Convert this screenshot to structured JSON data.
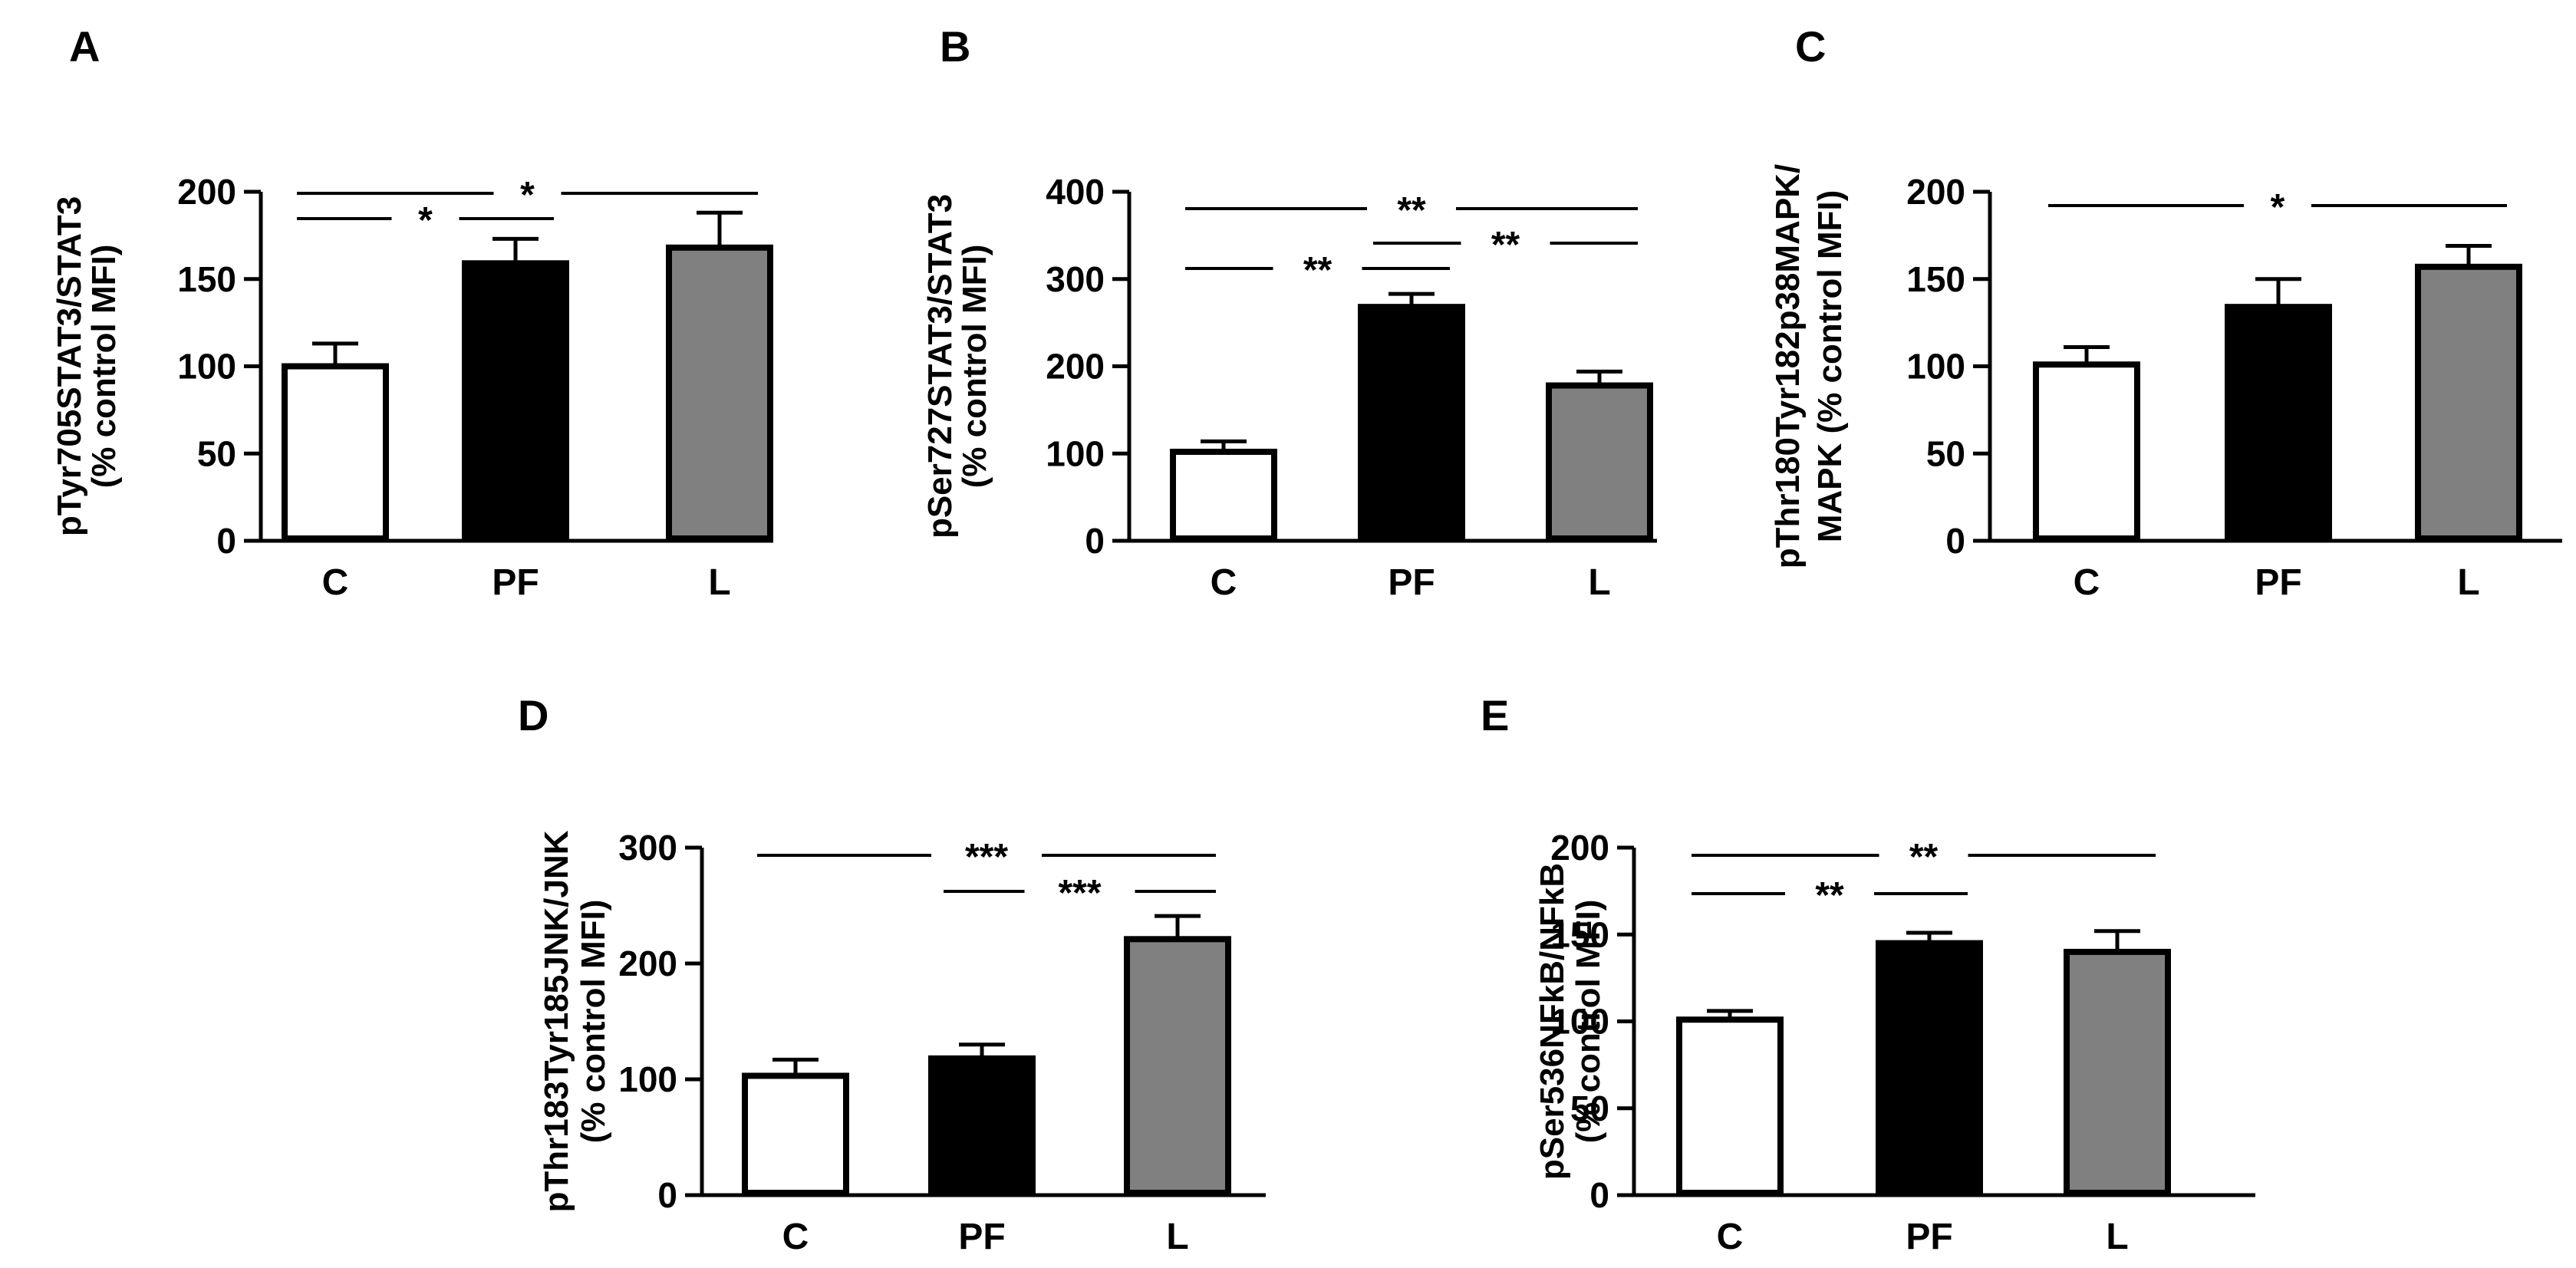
{
  "figure": {
    "panels": [
      {
        "id": "A",
        "panel_label": "A",
        "ylabel_lines": [
          "pTyr705STAT3/STAT3",
          "(% control MFI)"
        ],
        "y_ticks": [
          0,
          50,
          100,
          150,
          200
        ],
        "significance": [
          {
            "from": "C",
            "to": "PF",
            "label": "*"
          },
          {
            "from": "C",
            "to": "L",
            "label": "*"
          }
        ]
      },
      {
        "id": "B",
        "panel_label": "B",
        "ylabel_lines": [
          "pSer727STAT3/STAT3",
          "(% control MFI)"
        ],
        "y_ticks": [
          0,
          100,
          200,
          300,
          400
        ],
        "significance": [
          {
            "from": "C",
            "to": "PF",
            "label": "**"
          },
          {
            "from": "PF",
            "to": "L",
            "label": "**"
          },
          {
            "from": "C",
            "to": "L",
            "label": "**"
          }
        ]
      },
      {
        "id": "C",
        "panel_label": "C",
        "ylabel_lines": [
          "pThr180Tyr182p38MAPK/",
          "MAPK (% control MFI)"
        ],
        "y_ticks": [
          0,
          50,
          100,
          150,
          200
        ],
        "significance": [
          {
            "from": "C",
            "to": "L",
            "label": "*"
          }
        ]
      },
      {
        "id": "D",
        "panel_label": "D",
        "ylabel_lines": [
          "pThr183Tyr185JNK/JNK",
          "(% control MFI)"
        ],
        "y_ticks": [
          0,
          100,
          200,
          300
        ],
        "significance": [
          {
            "from": "C",
            "to": "L",
            "label": "***"
          },
          {
            "from": "PF",
            "to": "L",
            "label": "***"
          }
        ]
      },
      {
        "id": "E",
        "panel_label": "E",
        "ylabel_lines": [
          "pSer536NFkB/NFkB",
          "(% control MFI)"
        ],
        "y_ticks": [
          0,
          50,
          100,
          150,
          200
        ],
        "significance": [
          {
            "from": "C",
            "to": "PF",
            "label": "**"
          },
          {
            "from": "C",
            "to": "L",
            "label": "**"
          }
        ]
      }
    ],
    "colors": {
      "C": "#ffffff",
      "PF": "#000000",
      "L": "#808080",
      "axis": "#000000"
    }
  },
  "chart_data": [
    {
      "type": "bar",
      "title": "A",
      "categories": [
        "C",
        "PF",
        "L"
      ],
      "values": [
        100,
        159,
        168
      ],
      "errors": [
        13,
        14,
        20
      ],
      "xlabel": "",
      "ylabel": "pTyr705STAT3/STAT3 (% control MFI)",
      "ylim": [
        0,
        200
      ],
      "grid": false
    },
    {
      "type": "bar",
      "title": "B",
      "categories": [
        "C",
        "PF",
        "L"
      ],
      "values": [
        102,
        268,
        178
      ],
      "errors": [
        12,
        15,
        16
      ],
      "xlabel": "",
      "ylabel": "pSer727STAT3/STAT3 (% control MFI)",
      "ylim": [
        0,
        400
      ],
      "grid": false
    },
    {
      "type": "bar",
      "title": "C",
      "categories": [
        "C",
        "PF",
        "L"
      ],
      "values": [
        101,
        134,
        157
      ],
      "errors": [
        10,
        16,
        12
      ],
      "xlabel": "",
      "ylabel": "pThr180Tyr182p38MAPK/MAPK (% control MFI)",
      "ylim": [
        0,
        200
      ],
      "grid": false
    },
    {
      "type": "bar",
      "title": "D",
      "categories": [
        "C",
        "PF",
        "L"
      ],
      "values": [
        103,
        118,
        221
      ],
      "errors": [
        14,
        12,
        20
      ],
      "xlabel": "",
      "ylabel": "pThr183Tyr185JNK/JNK (% control MFI)",
      "ylim": [
        0,
        300
      ],
      "grid": false
    },
    {
      "type": "bar",
      "title": "E",
      "categories": [
        "C",
        "PF",
        "L"
      ],
      "values": [
        101,
        145,
        140
      ],
      "errors": [
        5,
        6,
        12
      ],
      "xlabel": "",
      "ylabel": "pSer536NFkB/NFkB (% control MFI)",
      "ylim": [
        0,
        200
      ],
      "grid": false
    }
  ]
}
